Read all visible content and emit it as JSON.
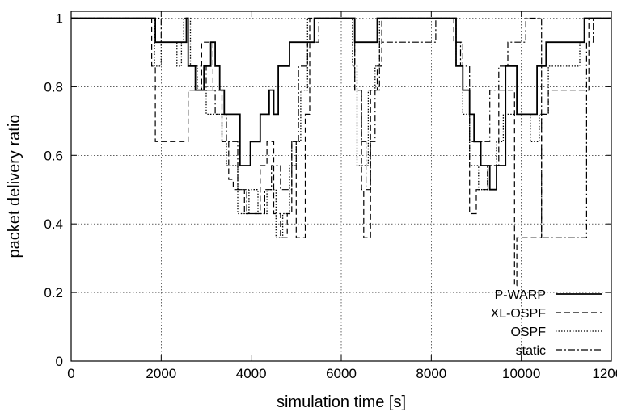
{
  "chart_data": {
    "type": "line",
    "xlabel": "simulation time [s]",
    "ylabel": "packet delivery ratio",
    "xlim": [
      0,
      12000
    ],
    "ylim": [
      0,
      1.02
    ],
    "xticks": [
      0,
      2000,
      4000,
      6000,
      8000,
      10000,
      12000
    ],
    "yticks": [
      0,
      0.2,
      0.4,
      0.6,
      0.8,
      1
    ],
    "xtick_labels": [
      "0",
      "2000",
      "4000",
      "6000",
      "8000",
      "10000",
      "12000"
    ],
    "ytick_labels": [
      "0",
      "0.2",
      "0.4",
      "0.6",
      "0.8",
      "1"
    ],
    "grid": true,
    "legend_position": "bottom-right",
    "series": [
      {
        "name": "P-WARP",
        "style": "solid",
        "points": [
          [
            0,
            1
          ],
          [
            1850,
            1
          ],
          [
            1870,
            0.93
          ],
          [
            2500,
            0.93
          ],
          [
            2560,
            1
          ],
          [
            2600,
            0.86
          ],
          [
            2700,
            0.86
          ],
          [
            2760,
            0.79
          ],
          [
            2900,
            0.79
          ],
          [
            2950,
            0.86
          ],
          [
            3100,
            0.93
          ],
          [
            3200,
            0.86
          ],
          [
            3300,
            0.79
          ],
          [
            3400,
            0.72
          ],
          [
            3700,
            0.72
          ],
          [
            3750,
            0.57
          ],
          [
            3950,
            0.57
          ],
          [
            3980,
            0.64
          ],
          [
            4100,
            0.64
          ],
          [
            4200,
            0.72
          ],
          [
            4400,
            0.79
          ],
          [
            4500,
            0.72
          ],
          [
            4600,
            0.86
          ],
          [
            4850,
            0.93
          ],
          [
            5300,
            0.93
          ],
          [
            5400,
            1
          ],
          [
            6250,
            1
          ],
          [
            6300,
            0.93
          ],
          [
            6750,
            0.93
          ],
          [
            6800,
            1
          ],
          [
            8500,
            1
          ],
          [
            8550,
            0.86
          ],
          [
            8700,
            0.79
          ],
          [
            8850,
            0.72
          ],
          [
            8950,
            0.64
          ],
          [
            9100,
            0.57
          ],
          [
            9300,
            0.5
          ],
          [
            9450,
            0.57
          ],
          [
            9650,
            0.86
          ],
          [
            9900,
            0.72
          ],
          [
            10200,
            0.72
          ],
          [
            10350,
            0.86
          ],
          [
            10550,
            0.93
          ],
          [
            11300,
            0.93
          ],
          [
            11400,
            1
          ],
          [
            12000,
            1
          ]
        ]
      },
      {
        "name": "XL-OSPF",
        "style": "dashed",
        "points": [
          [
            0,
            1
          ],
          [
            1770,
            1
          ],
          [
            1790,
            0.86
          ],
          [
            1870,
            0.64
          ],
          [
            2550,
            0.64
          ],
          [
            2600,
            0.79
          ],
          [
            2750,
            0.79
          ],
          [
            2900,
            0.93
          ],
          [
            3100,
            0.93
          ],
          [
            3150,
            0.79
          ],
          [
            3350,
            0.64
          ],
          [
            3500,
            0.53
          ],
          [
            3600,
            0.5
          ],
          [
            3750,
            0.5
          ],
          [
            3850,
            0.43
          ],
          [
            4100,
            0.43
          ],
          [
            4200,
            0.57
          ],
          [
            4350,
            0.64
          ],
          [
            4500,
            0.43
          ],
          [
            4650,
            0.36
          ],
          [
            4800,
            0.43
          ],
          [
            4900,
            0.64
          ],
          [
            5000,
            0.36
          ],
          [
            5100,
            0.36
          ],
          [
            5200,
            0.72
          ],
          [
            5300,
            1
          ],
          [
            6250,
            1
          ],
          [
            6300,
            0.79
          ],
          [
            6450,
            0.5
          ],
          [
            6500,
            0.36
          ],
          [
            6600,
            0.36
          ],
          [
            6650,
            0.79
          ],
          [
            6800,
            0.86
          ],
          [
            6900,
            1
          ],
          [
            8450,
            1
          ],
          [
            8500,
            0.93
          ],
          [
            8700,
            0.79
          ],
          [
            8850,
            0.43
          ],
          [
            9000,
            0.5
          ],
          [
            9250,
            0.57
          ],
          [
            9500,
            0.79
          ],
          [
            9750,
            0.79
          ],
          [
            9850,
            0.22
          ],
          [
            9900,
            0.36
          ],
          [
            10400,
            0.36
          ],
          [
            10450,
            0.72
          ],
          [
            10600,
            0.79
          ],
          [
            11400,
            0.79
          ],
          [
            11500,
            1
          ],
          [
            12000,
            1
          ]
        ]
      },
      {
        "name": "OSPF",
        "style": "dotted",
        "points": [
          [
            0,
            1
          ],
          [
            1800,
            1
          ],
          [
            1850,
            0.86
          ],
          [
            2000,
            0.93
          ],
          [
            2300,
            0.93
          ],
          [
            2350,
            0.86
          ],
          [
            2450,
            0.93
          ],
          [
            2500,
            1
          ],
          [
            2650,
            0.86
          ],
          [
            2800,
            0.79
          ],
          [
            3000,
            0.72
          ],
          [
            3200,
            0.72
          ],
          [
            3350,
            0.64
          ],
          [
            3450,
            0.57
          ],
          [
            3650,
            0.57
          ],
          [
            3700,
            0.43
          ],
          [
            3850,
            0.43
          ],
          [
            3950,
            0.5
          ],
          [
            4150,
            0.43
          ],
          [
            4350,
            0.5
          ],
          [
            4550,
            0.36
          ],
          [
            4700,
            0.43
          ],
          [
            4850,
            0.57
          ],
          [
            5000,
            0.64
          ],
          [
            5100,
            0.79
          ],
          [
            5250,
            1
          ],
          [
            6150,
            1
          ],
          [
            6250,
            0.86
          ],
          [
            6350,
            0.57
          ],
          [
            6500,
            0.57
          ],
          [
            6600,
            0.79
          ],
          [
            6750,
            0.86
          ],
          [
            6850,
            1
          ],
          [
            8450,
            1
          ],
          [
            8550,
            0.86
          ],
          [
            8700,
            0.72
          ],
          [
            8850,
            0.57
          ],
          [
            9050,
            0.5
          ],
          [
            9250,
            0.57
          ],
          [
            9450,
            0.64
          ],
          [
            9600,
            0.72
          ],
          [
            9750,
            0.72
          ],
          [
            9850,
            0.72
          ],
          [
            10000,
            0.72
          ],
          [
            10200,
            0.64
          ],
          [
            10400,
            0.72
          ],
          [
            10600,
            0.86
          ],
          [
            11300,
            0.93
          ],
          [
            11400,
            1
          ],
          [
            12000,
            1
          ]
        ]
      },
      {
        "name": "static",
        "style": "dashdot",
        "points": [
          [
            0,
            1
          ],
          [
            1900,
            1
          ],
          [
            2000,
            0.93
          ],
          [
            2550,
            0.93
          ],
          [
            2600,
            0.86
          ],
          [
            2900,
            0.86
          ],
          [
            3000,
            0.79
          ],
          [
            3200,
            0.72
          ],
          [
            3450,
            0.64
          ],
          [
            3600,
            0.64
          ],
          [
            3700,
            0.5
          ],
          [
            3900,
            0.43
          ],
          [
            4100,
            0.43
          ],
          [
            4300,
            0.5
          ],
          [
            4450,
            0.57
          ],
          [
            4650,
            0.5
          ],
          [
            4800,
            0.5
          ],
          [
            4900,
            0.64
          ],
          [
            5050,
            0.86
          ],
          [
            5250,
            0.93
          ],
          [
            5450,
            0.93
          ],
          [
            5500,
            1
          ],
          [
            6250,
            1
          ],
          [
            6300,
            0.79
          ],
          [
            6450,
            0.64
          ],
          [
            6550,
            0.5
          ],
          [
            6650,
            0.64
          ],
          [
            6750,
            0.79
          ],
          [
            6850,
            0.93
          ],
          [
            8000,
            0.93
          ],
          [
            8100,
            1
          ],
          [
            8450,
            1
          ],
          [
            8550,
            0.93
          ],
          [
            8650,
            0.86
          ],
          [
            8850,
            0.64
          ],
          [
            9100,
            0.64
          ],
          [
            9300,
            0.79
          ],
          [
            9500,
            0.86
          ],
          [
            9700,
            0.93
          ],
          [
            10000,
            0.93
          ],
          [
            10100,
            1
          ],
          [
            10400,
            1
          ],
          [
            10450,
            0.36
          ],
          [
            11400,
            0.36
          ],
          [
            11450,
            0.93
          ],
          [
            11600,
            1
          ],
          [
            12000,
            1
          ]
        ]
      }
    ]
  }
}
